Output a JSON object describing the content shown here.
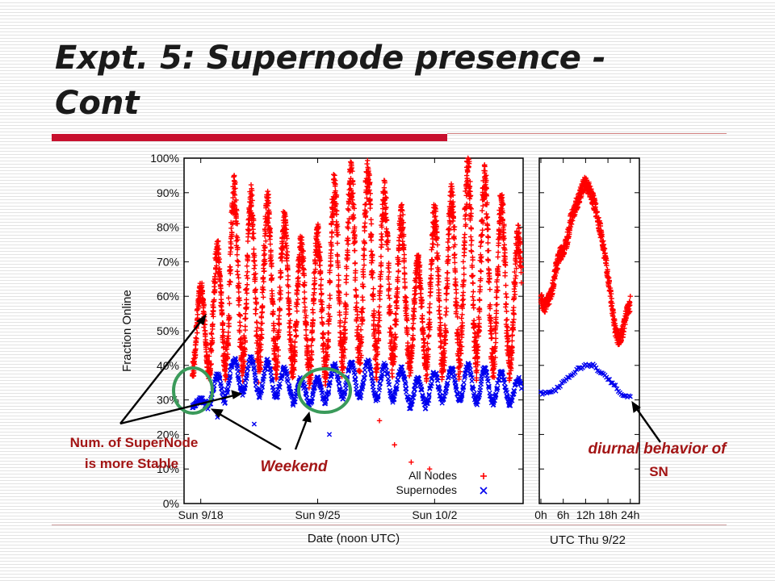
{
  "slide": {
    "title_line1": "Expt. 5: Supernode presence -",
    "title_line2": "Cont"
  },
  "colors": {
    "all_nodes": "#ff0000",
    "supernodes": "#0000ee",
    "annotation_text": "#a31515",
    "highlight_ellipse": "#3a9a5a",
    "title_rule": "#c8102e"
  },
  "annotations": {
    "stable_line1": "Num. of SuperNode",
    "stable_line2": "is more Stable",
    "weekend": "Weekend",
    "diurnal_line1": "diurnal behavior of",
    "diurnal_line2": "SN"
  },
  "chart_data": [
    {
      "type": "scatter",
      "title": "",
      "xlabel": "Date (noon UTC)",
      "ylabel": "Fraction Online",
      "ylim": [
        0,
        100
      ],
      "yticks": [
        "0%",
        "10%",
        "20%",
        "30%",
        "40%",
        "50%",
        "60%",
        "70%",
        "80%",
        "90%",
        "100%"
      ],
      "xticks": [
        "Sun 9/18",
        "Sun 9/25",
        "Sun 10/2"
      ],
      "xlim_days": [
        0,
        20.3
      ],
      "xtick_days": [
        1,
        8,
        15
      ],
      "legend": {
        "placement": "bottom-right",
        "entries": [
          "All Nodes",
          "Supernodes"
        ]
      },
      "series": [
        {
          "name": "All Nodes",
          "marker": "+",
          "day_start": 0.5,
          "day_end": 20.2,
          "daily_peak": [
            64,
            76,
            94,
            92,
            90,
            85,
            77,
            80,
            95,
            99,
            100,
            93,
            86,
            72,
            87,
            93,
            100,
            98,
            90,
            80
          ],
          "daily_trough": [
            40,
            42,
            45,
            44,
            46,
            44,
            42,
            41,
            45,
            47,
            48,
            45,
            44,
            42,
            43,
            45,
            47,
            46,
            44,
            43
          ],
          "outliers": [
            [
              11.7,
              24
            ],
            [
              13.6,
              12
            ],
            [
              14.7,
              10
            ],
            [
              12.6,
              17
            ]
          ]
        },
        {
          "name": "Supernodes",
          "marker": "x",
          "day_start": 0.5,
          "day_end": 20.2,
          "daily_peak": [
            30,
            37,
            42,
            42,
            41,
            39,
            36,
            36,
            40,
            41,
            41,
            40,
            39,
            36,
            38,
            39,
            40,
            39,
            38,
            36
          ],
          "daily_trough": [
            28,
            29,
            32,
            32,
            31,
            31,
            29,
            29,
            31,
            31,
            31,
            30,
            30,
            28,
            29,
            30,
            30,
            29,
            29,
            29
          ],
          "outliers": [
            [
              2.0,
              25
            ],
            [
              4.2,
              23
            ],
            [
              8.7,
              20
            ]
          ]
        }
      ]
    },
    {
      "type": "scatter",
      "title": "",
      "xlabel": "UTC Thu 9/22",
      "ylabel": "",
      "ylim": [
        0,
        100
      ],
      "xlim_hours": [
        0,
        26
      ],
      "xticks": [
        "0h",
        "6h",
        "12h",
        "18h",
        "24h"
      ],
      "xtick_hours": [
        0,
        6,
        12,
        18,
        24
      ],
      "series": [
        {
          "name": "All Nodes",
          "marker": "+",
          "points": [
            [
              0,
              61
            ],
            [
              1,
              59
            ],
            [
              2,
              61
            ],
            [
              3,
              64
            ],
            [
              4,
              70
            ],
            [
              5,
              74
            ],
            [
              6,
              75
            ],
            [
              7,
              78
            ],
            [
              8,
              84
            ],
            [
              9,
              87
            ],
            [
              10,
              90
            ],
            [
              11,
              93
            ],
            [
              12,
              95
            ],
            [
              13,
              93
            ],
            [
              14,
              90
            ],
            [
              15,
              86
            ],
            [
              16,
              81
            ],
            [
              17,
              75
            ],
            [
              18,
              68
            ],
            [
              19,
              60
            ],
            [
              20,
              52
            ],
            [
              21,
              49
            ],
            [
              22,
              52
            ],
            [
              23,
              57
            ],
            [
              24,
              60
            ]
          ]
        },
        {
          "name": "Supernodes",
          "marker": "x",
          "points": [
            [
              0,
              32
            ],
            [
              2,
              32
            ],
            [
              4,
              33
            ],
            [
              6,
              35
            ],
            [
              8,
              37
            ],
            [
              10,
              39
            ],
            [
              12,
              40
            ],
            [
              14,
              40
            ],
            [
              16,
              38
            ],
            [
              18,
              36
            ],
            [
              20,
              34
            ],
            [
              22,
              31
            ],
            [
              24,
              31
            ]
          ]
        }
      ]
    }
  ]
}
